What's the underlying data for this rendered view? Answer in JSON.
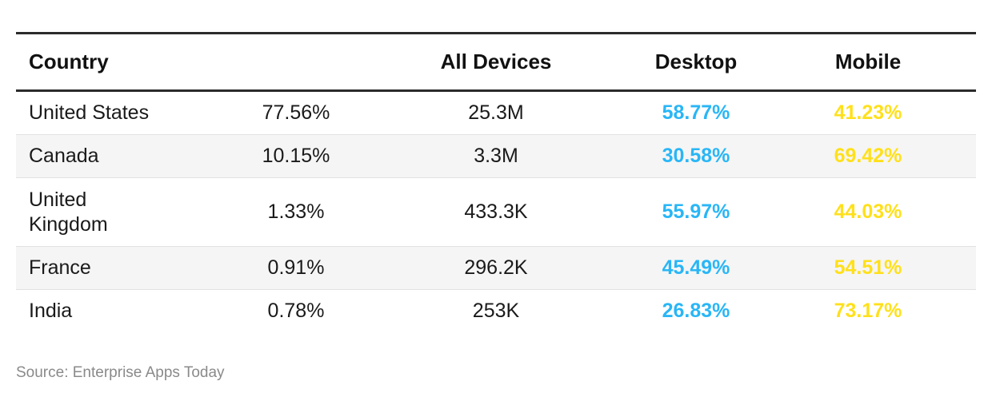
{
  "chart_data": {
    "type": "table",
    "columns": [
      "Country",
      "",
      "All Devices",
      "Desktop",
      "Mobile"
    ],
    "rows": [
      {
        "country": "United States",
        "share": "77.56%",
        "all_devices": "25.3M",
        "desktop": "58.77%",
        "mobile": "41.23%"
      },
      {
        "country": "Canada",
        "share": "10.15%",
        "all_devices": "3.3M",
        "desktop": "30.58%",
        "mobile": "69.42%"
      },
      {
        "country": "United Kingdom",
        "share": "1.33%",
        "all_devices": "433.3K",
        "desktop": "55.97%",
        "mobile": "44.03%"
      },
      {
        "country": "France",
        "share": "0.91%",
        "all_devices": "296.2K",
        "desktop": "45.49%",
        "mobile": "54.51%"
      },
      {
        "country": "India",
        "share": "0.78%",
        "all_devices": "253K",
        "desktop": "26.83%",
        "mobile": "73.17%"
      }
    ],
    "colors": {
      "desktop": "#29b6f6",
      "mobile": "#ffe01b"
    }
  },
  "source": "Source: Enterprise Apps Today"
}
